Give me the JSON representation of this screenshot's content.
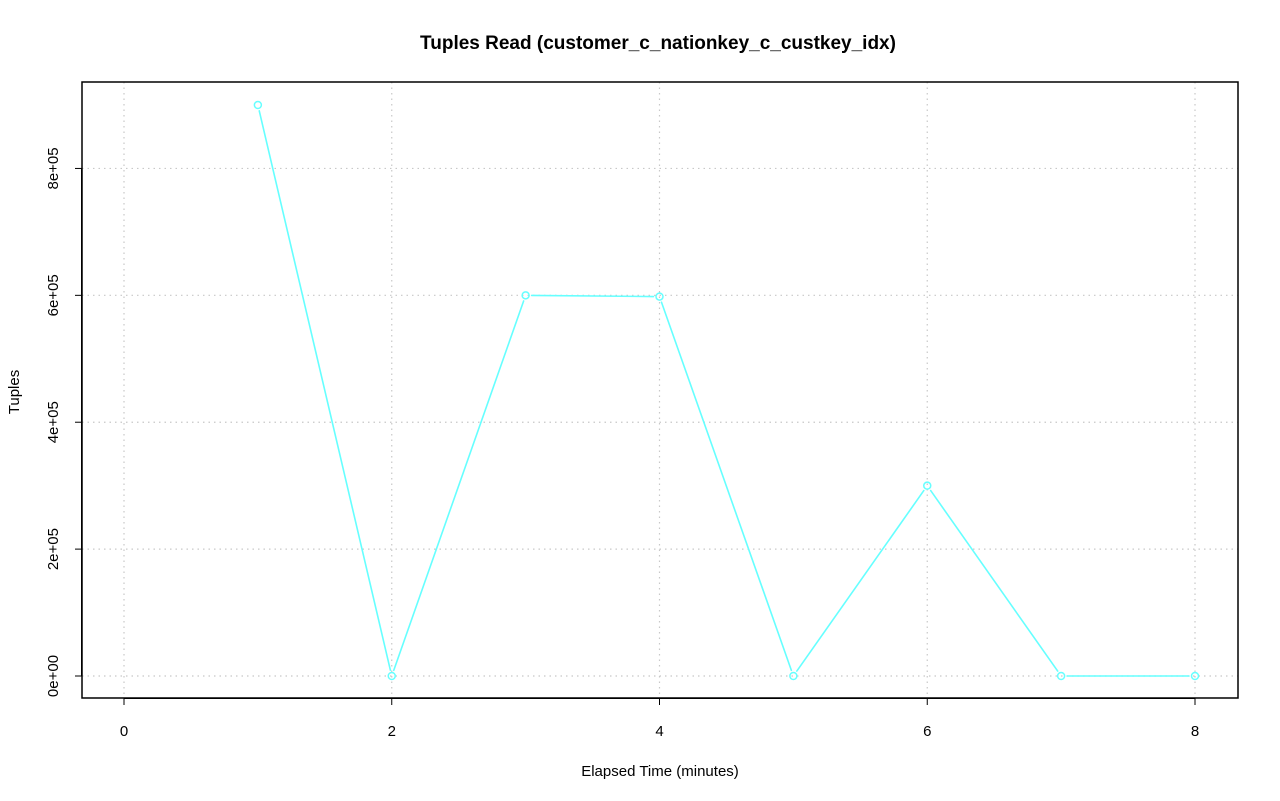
{
  "chart_data": {
    "type": "line",
    "title": "Tuples Read (customer_c_nationkey_c_custkey_idx)",
    "xlabel": "Elapsed Time (minutes)",
    "ylabel": "Tuples",
    "xlim": [
      0,
      8
    ],
    "ylim": [
      0,
      900000
    ],
    "x_ticks": [
      0,
      2,
      4,
      6,
      8
    ],
    "x_tick_labels": [
      "0",
      "2",
      "4",
      "6",
      "8"
    ],
    "y_ticks": [
      0,
      200000,
      400000,
      600000,
      800000
    ],
    "y_tick_labels": [
      "0e+00",
      "2e+05",
      "4e+05",
      "6e+05",
      "8e+05"
    ],
    "grid": true,
    "series": [
      {
        "color": "#66ffff",
        "marker": "open-circle",
        "x": [
          1,
          2,
          3,
          4,
          5,
          6,
          7,
          8
        ],
        "y": [
          900000,
          0,
          600000,
          598000,
          0,
          300000,
          0,
          0
        ]
      }
    ]
  }
}
